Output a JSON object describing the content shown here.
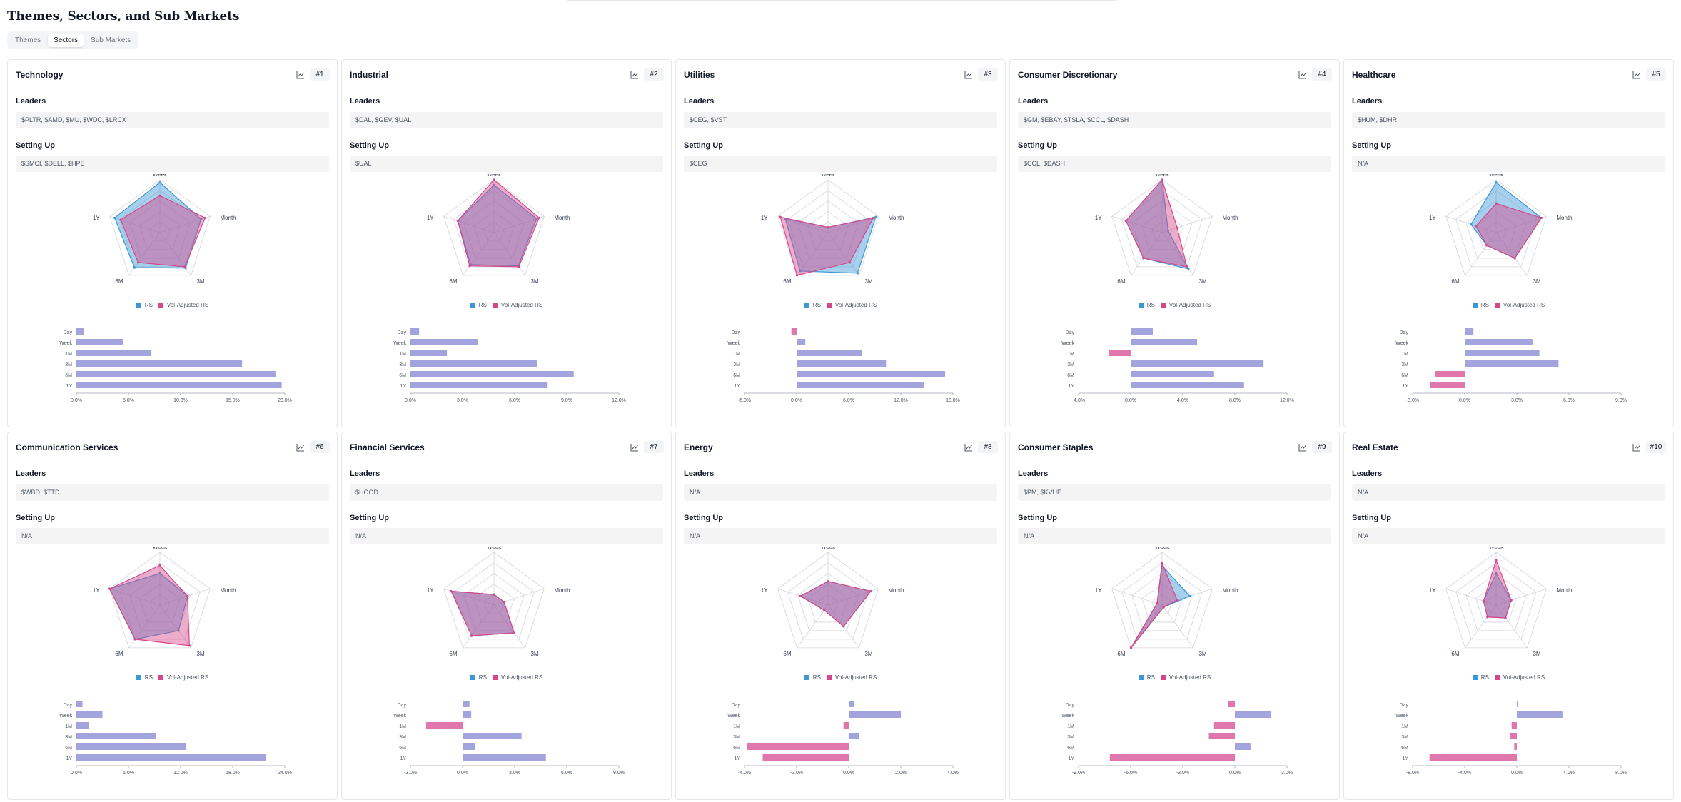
{
  "page": {
    "title": "Themes, Sectors, and Sub Markets",
    "tabs": [
      {
        "label": "Themes",
        "active": false
      },
      {
        "label": "Sectors",
        "active": true
      },
      {
        "label": "Sub Markets",
        "active": false
      }
    ],
    "leaders_label": "Leaders",
    "setting_up_label": "Setting Up"
  },
  "colors": {
    "rs": "#3b97d6",
    "vol": "#d6478a",
    "bar_pos": "#a3a3dd",
    "bar_neg": "#df77ad",
    "overlap": "#9b8bd0"
  },
  "chart_data": [
    {
      "type": "radar+bar",
      "sector": "Technology",
      "rank": "#1",
      "leaders": "$PLTR, $AMD, $MU, $WDC, $LRCX",
      "setting_up": "$SMCI, $DELL, $HPE",
      "radar_axes": [
        "Week",
        "Month",
        "3M",
        "6M",
        "1Y"
      ],
      "legend": [
        "RS",
        "Vol-Adjusted RS"
      ],
      "rs": [
        0.95,
        0.82,
        0.83,
        0.82,
        0.9
      ],
      "vol_rs": [
        0.7,
        0.9,
        0.8,
        0.7,
        0.78
      ],
      "bar_categories": [
        "Day",
        "Week",
        "1M",
        "3M",
        "6M",
        "1Y"
      ],
      "bar_values": [
        0.7,
        4.5,
        7.2,
        15.9,
        19.1,
        19.7
      ],
      "x_ticks": [
        "0.0%",
        "5.0%",
        "10.0%",
        "15.0%",
        "20.0%"
      ],
      "x_range": [
        0,
        20
      ]
    },
    {
      "type": "radar+bar",
      "sector": "Industrial",
      "rank": "#2",
      "leaders": "$DAL, $GEV, $UAL",
      "setting_up": "$UAL",
      "radar_axes": [
        "Week",
        "Month",
        "3M",
        "6M",
        "1Y"
      ],
      "legend": [
        "RS",
        "Vol-Adjusted RS"
      ],
      "rs": [
        0.9,
        0.85,
        0.78,
        0.75,
        0.72
      ],
      "vol_rs": [
        1.0,
        0.9,
        0.8,
        0.78,
        0.72
      ],
      "bar_categories": [
        "Day",
        "Week",
        "1M",
        "3M",
        "6M",
        "1Y"
      ],
      "bar_values": [
        0.5,
        3.9,
        2.1,
        7.3,
        9.4,
        7.9
      ],
      "x_ticks": [
        "0.0%",
        "3.0%",
        "6.0%",
        "9.0%",
        "12.0%"
      ],
      "x_range": [
        0,
        12
      ]
    },
    {
      "type": "radar+bar",
      "sector": "Utilities",
      "rank": "#3",
      "leaders": "$CEG, $VST",
      "setting_up": "$CEG",
      "radar_axes": [
        "Week",
        "Month",
        "3M",
        "6M",
        "1Y"
      ],
      "legend": [
        "RS",
        "Vol-Adjusted RS"
      ],
      "rs": [
        0.1,
        0.95,
        0.95,
        0.9,
        0.85
      ],
      "vol_rs": [
        0.1,
        0.9,
        0.7,
        1.0,
        0.95
      ],
      "bar_categories": [
        "Day",
        "Week",
        "1M",
        "3M",
        "6M",
        "1Y"
      ],
      "bar_values": [
        -0.6,
        1.0,
        7.5,
        10.3,
        17.1,
        14.7
      ],
      "x_ticks": [
        "-6.0%",
        "0.0%",
        "6.0%",
        "12.0%",
        "18.0%"
      ],
      "x_range": [
        -6,
        18
      ]
    },
    {
      "type": "radar+bar",
      "sector": "Consumer Discretionary",
      "rank": "#4",
      "leaders": "$GM, $EBAY, $TSLA, $CCL, $DASH",
      "setting_up": "$CCL, $DASH",
      "radar_axes": [
        "Week",
        "Month",
        "3M",
        "6M",
        "1Y"
      ],
      "legend": [
        "RS",
        "Vol-Adjusted RS"
      ],
      "rs": [
        1.0,
        0.12,
        0.85,
        0.6,
        0.72
      ],
      "vol_rs": [
        1.0,
        0.3,
        0.8,
        0.6,
        0.72
      ],
      "bar_categories": [
        "Day",
        "Week",
        "1M",
        "3M",
        "6M",
        "1Y"
      ],
      "bar_values": [
        1.7,
        5.1,
        -1.7,
        10.2,
        6.4,
        8.7
      ],
      "x_ticks": [
        "-4.0%",
        "0.0%",
        "4.0%",
        "8.0%",
        "12.0%"
      ],
      "x_range": [
        -4,
        12
      ]
    },
    {
      "type": "radar+bar",
      "sector": "Healthcare",
      "rank": "#5",
      "leaders": "$HUM, $DHR",
      "setting_up": "N/A",
      "radar_axes": [
        "Week",
        "Month",
        "3M",
        "6M",
        "1Y"
      ],
      "legend": [
        "RS",
        "Vol-Adjusted RS"
      ],
      "rs": [
        0.95,
        0.9,
        0.6,
        0.3,
        0.5
      ],
      "vol_rs": [
        0.55,
        0.9,
        0.6,
        0.3,
        0.4
      ],
      "bar_categories": [
        "Day",
        "Week",
        "1M",
        "3M",
        "6M",
        "1Y"
      ],
      "bar_values": [
        0.5,
        3.9,
        4.3,
        5.4,
        -1.7,
        -2.0
      ],
      "x_ticks": [
        "-3.0%",
        "0.0%",
        "3.0%",
        "6.0%",
        "9.0%"
      ],
      "x_range": [
        -3,
        9
      ]
    },
    {
      "type": "radar+bar",
      "sector": "Communication Services",
      "rank": "#6",
      "leaders": "$WBD, $TTD",
      "setting_up": "N/A",
      "radar_axes": [
        "Week",
        "Month",
        "3M",
        "6M",
        "1Y"
      ],
      "legend": [
        "RS",
        "Vol-Adjusted RS"
      ],
      "rs": [
        0.6,
        0.55,
        0.6,
        0.8,
        1.0
      ],
      "vol_rs": [
        0.75,
        0.55,
        0.95,
        0.8,
        1.0
      ],
      "bar_categories": [
        "Day",
        "Week",
        "1M",
        "3M",
        "6M",
        "1Y"
      ],
      "bar_values": [
        0.7,
        3.0,
        1.4,
        9.2,
        12.6,
        21.8
      ],
      "x_ticks": [
        "0.0%",
        "6.0%",
        "12.0%",
        "18.0%",
        "24.0%"
      ],
      "x_range": [
        0,
        24
      ]
    },
    {
      "type": "radar+bar",
      "sector": "Financial Services",
      "rank": "#7",
      "leaders": "$HOOD",
      "setting_up": "N/A",
      "radar_axes": [
        "Week",
        "Month",
        "3M",
        "6M",
        "1Y"
      ],
      "legend": [
        "RS",
        "Vol-Adjusted RS"
      ],
      "rs": [
        0.2,
        0.2,
        0.65,
        0.72,
        0.85
      ],
      "vol_rs": [
        0.2,
        0.2,
        0.65,
        0.72,
        0.85
      ],
      "bar_categories": [
        "Day",
        "Week",
        "1M",
        "3M",
        "6M",
        "1Y"
      ],
      "bar_values": [
        0.4,
        0.5,
        -2.1,
        3.4,
        0.7,
        4.8
      ],
      "x_ticks": [
        "-3.0%",
        "0.0%",
        "3.0%",
        "6.0%",
        "9.0%"
      ],
      "x_range": [
        -3,
        9
      ]
    },
    {
      "type": "radar+bar",
      "sector": "Energy",
      "rank": "#8",
      "leaders": "N/A",
      "setting_up": "N/A",
      "radar_axes": [
        "Week",
        "Month",
        "3M",
        "6M",
        "1Y"
      ],
      "legend": [
        "RS",
        "Vol-Adjusted RS"
      ],
      "rs": [
        0.45,
        0.85,
        0.5,
        0.12,
        0.55
      ],
      "vol_rs": [
        0.45,
        0.85,
        0.5,
        0.12,
        0.55
      ],
      "bar_categories": [
        "Day",
        "Week",
        "1M",
        "3M",
        "6M",
        "1Y"
      ],
      "bar_values": [
        0.2,
        2.0,
        -0.2,
        0.4,
        -3.9,
        -3.3
      ],
      "x_ticks": [
        "-4.0%",
        "-2.0%",
        "0.0%",
        "2.0%",
        "4.0%"
      ],
      "x_range": [
        -4,
        4
      ]
    },
    {
      "type": "radar+bar",
      "sector": "Consumer Staples",
      "rank": "#9",
      "leaders": "$PM, $KVUE",
      "setting_up": "N/A",
      "radar_axes": [
        "Week",
        "Month",
        "3M",
        "6M",
        "1Y"
      ],
      "legend": [
        "RS",
        "Vol-Adjusted RS"
      ],
      "rs": [
        0.75,
        0.55,
        0.05,
        1.0,
        0.1
      ],
      "vol_rs": [
        0.8,
        0.3,
        0.05,
        1.0,
        0.1
      ],
      "bar_categories": [
        "Day",
        "Week",
        "1M",
        "3M",
        "6M",
        "1Y"
      ],
      "bar_values": [
        -0.4,
        2.1,
        -1.2,
        -1.5,
        0.9,
        -7.2
      ],
      "x_ticks": [
        "-9.0%",
        "-6.0%",
        "-3.0%",
        "0.0%",
        "3.0%"
      ],
      "x_range": [
        -9,
        3
      ]
    },
    {
      "type": "radar+bar",
      "sector": "Real Estate",
      "rank": "#10",
      "leaders": "N/A",
      "setting_up": "N/A",
      "radar_axes": [
        "Week",
        "Month",
        "3M",
        "6M",
        "1Y"
      ],
      "legend": [
        "RS",
        "Vol-Adjusted RS"
      ],
      "rs": [
        0.6,
        0.3,
        0.3,
        0.28,
        0.25
      ],
      "vol_rs": [
        0.85,
        0.3,
        0.3,
        0.28,
        0.25
      ],
      "bar_categories": [
        "Day",
        "Week",
        "1M",
        "3M",
        "6M",
        "1Y"
      ],
      "bar_values": [
        0.1,
        3.5,
        -0.4,
        -0.5,
        -0.2,
        -6.7
      ],
      "x_ticks": [
        "-8.0%",
        "-4.0%",
        "0.0%",
        "4.0%",
        "8.0%"
      ],
      "x_range": [
        -8,
        8
      ]
    }
  ]
}
